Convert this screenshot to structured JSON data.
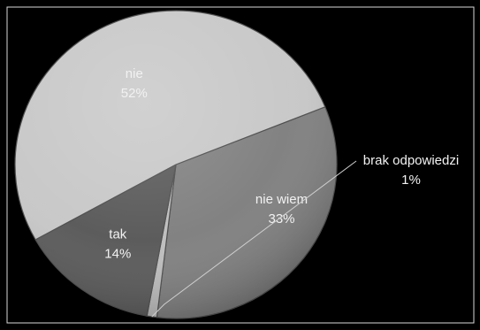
{
  "chart_data": {
    "type": "pie",
    "slices": [
      {
        "label": "nie wiem",
        "value": 33,
        "value_label": "33%",
        "color": "#7e7e7e"
      },
      {
        "label": "brak odpowiedzi",
        "value": 1,
        "value_label": "1%",
        "color": "#bdbdbd"
      },
      {
        "label": "tak",
        "value": 14,
        "value_label": "14%",
        "color": "#575757"
      },
      {
        "label": "nie",
        "value": 52,
        "value_label": "52%",
        "color": "#c7c7c7"
      }
    ],
    "start_angle_deg": -22,
    "direction": "clockwise",
    "legend": "none",
    "background": "#000000",
    "border_color": "#d9d9d9",
    "edge_color": "#4a4a4a"
  }
}
